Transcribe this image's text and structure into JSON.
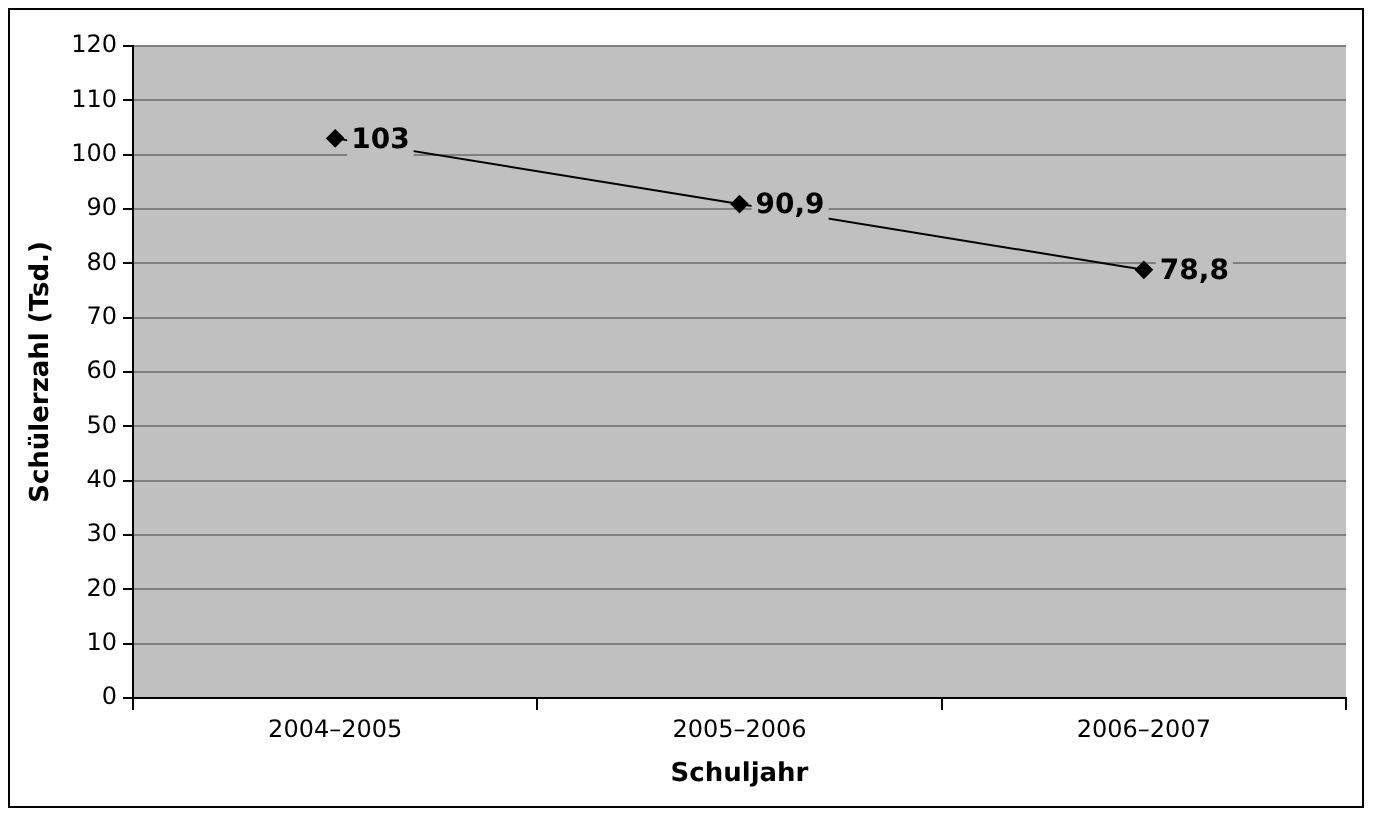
{
  "chart_data": {
    "type": "line",
    "xlabel": "Schuljahr",
    "ylabel": "Schülerzahl (Tsd.)",
    "categories": [
      "2004–2005",
      "2005–2006",
      "2006–2007"
    ],
    "series": [
      {
        "color": "#000000",
        "values": [
          103,
          90.9,
          78.8
        ],
        "value_labels": [
          "103",
          "90,9",
          "78,8"
        ]
      }
    ],
    "ylim": [
      0,
      120
    ],
    "yticks": [
      0,
      10,
      20,
      30,
      40,
      50,
      60,
      70,
      80,
      90,
      100,
      110,
      120
    ],
    "grid": "y",
    "legend": false,
    "marker": "diamond",
    "line_style": "solid"
  }
}
